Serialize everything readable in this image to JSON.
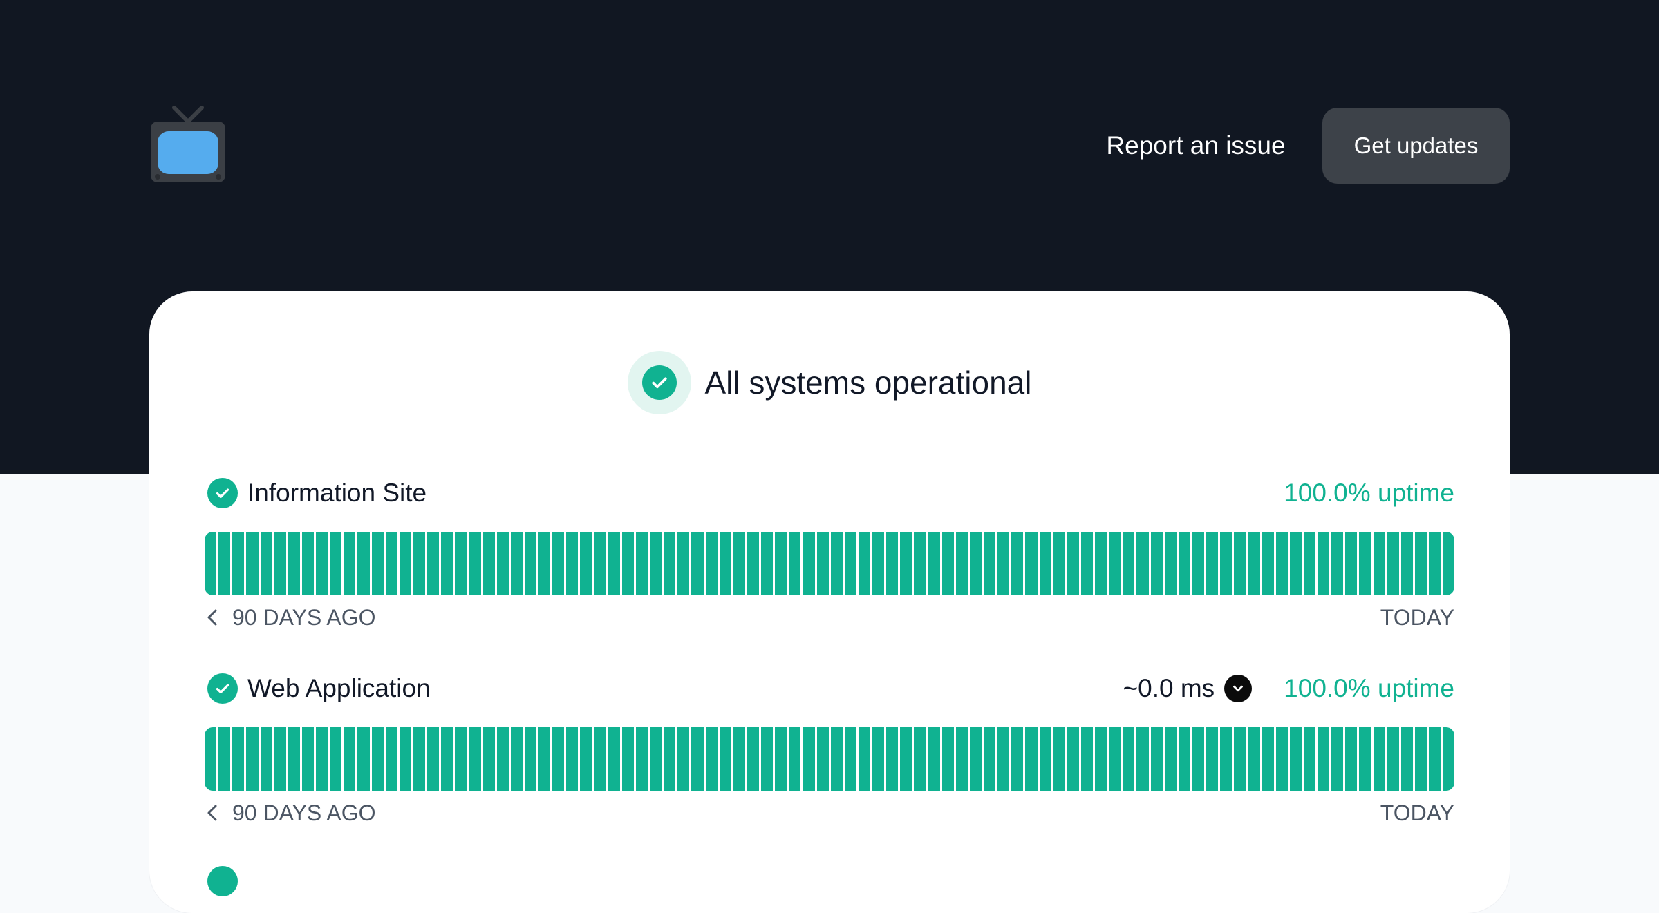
{
  "header": {
    "logo_icon": "tv-icon",
    "report_label": "Report an issue",
    "updates_label": "Get updates"
  },
  "status": {
    "icon": "check-circle-icon",
    "text": "All systems operational"
  },
  "colors": {
    "hero_bg": "#111722",
    "accent_green": "#10b291",
    "button_bg": "#3d4249"
  },
  "components": [
    {
      "name": "Information Site",
      "latency": "",
      "uptime": "100.0% uptime",
      "range_start": "90 DAYS AGO",
      "range_end": "TODAY",
      "days": 90
    },
    {
      "name": "Web Application",
      "latency": "~0.0 ms",
      "uptime": "100.0% uptime",
      "range_start": "90 DAYS AGO",
      "range_end": "TODAY",
      "days": 90
    }
  ]
}
